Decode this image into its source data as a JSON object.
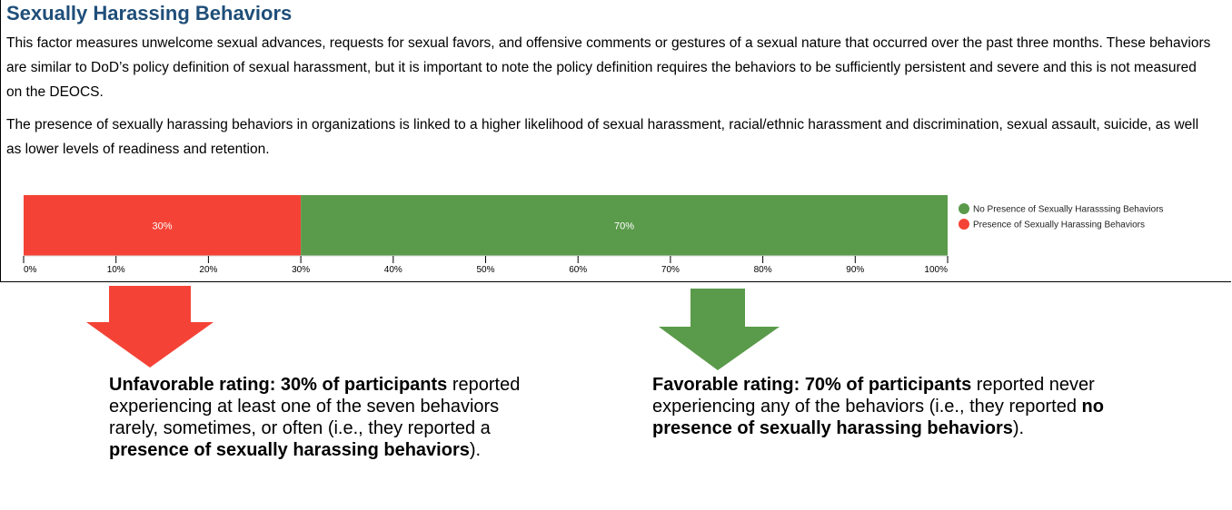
{
  "header": {
    "title": "Sexually Harassing Behaviors"
  },
  "paragraphs": [
    "This factor measures unwelcome sexual advances, requests for sexual favors, and offensive comments or gestures of a sexual nature that occurred over the past three months. These behaviors are similar to DoD’s policy definition of sexual harassment, but it is important to note the policy definition requires the behaviors to be sufficiently persistent and severe and this is not measured on the DEOCS.",
    "The presence of sexually harassing behaviors in organizations is linked to a higher likelihood of sexual harassment, racial/ethnic harassment and discrimination, sexual assault, suicide, as well as lower levels of readiness and retention."
  ],
  "chart_data": {
    "type": "stacked_barh",
    "series": [
      {
        "name": "Presence of Sexually Harassing Behaviors",
        "color": "#f44336",
        "values": [
          30
        ],
        "value_labels": [
          "30%"
        ]
      },
      {
        "name": "No Presence of Sexually Harasssing Behaviors",
        "color": "#5a9a4b",
        "values": [
          70
        ],
        "value_labels": [
          "70%"
        ]
      }
    ],
    "xlim": [
      0,
      100
    ],
    "xticks": [
      {
        "value": 0,
        "label": "0%"
      },
      {
        "value": 10,
        "label": "10%"
      },
      {
        "value": 20,
        "label": "20%"
      },
      {
        "value": 30,
        "label": "30%"
      },
      {
        "value": 40,
        "label": "40%"
      },
      {
        "value": 50,
        "label": "50%"
      },
      {
        "value": 60,
        "label": "60%"
      },
      {
        "value": 70,
        "label": "70%"
      },
      {
        "value": 80,
        "label": "80%"
      },
      {
        "value": 90,
        "label": "90%"
      },
      {
        "value": 100,
        "label": "100%"
      }
    ],
    "legend": "right"
  },
  "notes": [
    {
      "color": "#f44336",
      "segments": [
        {
          "text": "Unfavorable rating: 30% of participants",
          "bold": true
        },
        {
          "text": " reported experiencing at least one of the seven behaviors rarely, sometimes, or often (i.e., they reported a ",
          "bold": false
        },
        {
          "text": "presence of sexually harassing behaviors",
          "bold": true
        },
        {
          "text": ").",
          "bold": false
        }
      ]
    },
    {
      "color": "#5a9a4b",
      "segments": [
        {
          "text": "Favorable rating: 70% of participants",
          "bold": true
        },
        {
          "text": " reported never experiencing any of the behaviors (i.e., they reported ",
          "bold": false
        },
        {
          "text": "no presence of sexually harassing behaviors",
          "bold": true
        },
        {
          "text": ").",
          "bold": false
        }
      ]
    }
  ]
}
